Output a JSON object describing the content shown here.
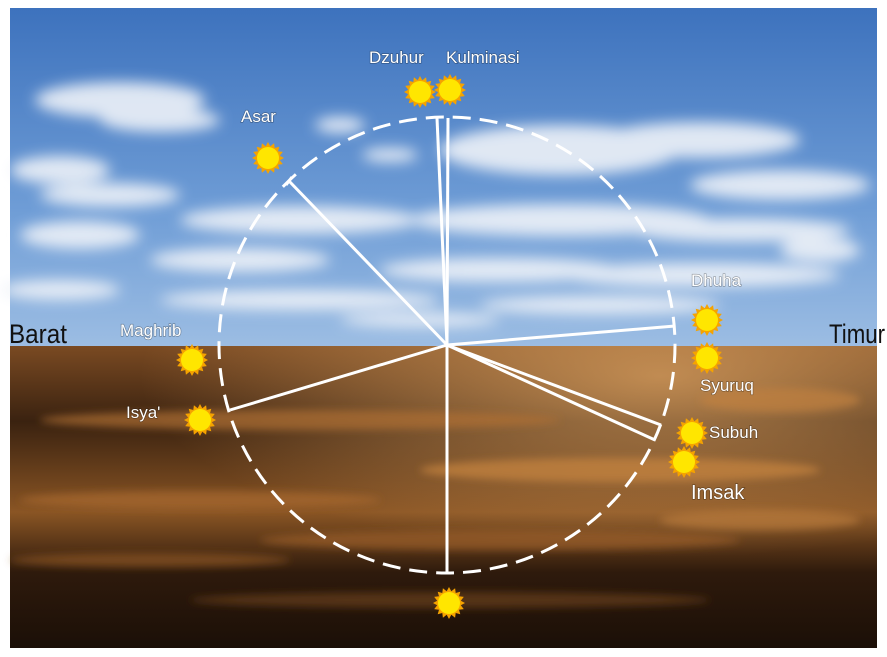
{
  "directions": {
    "west": "Barat",
    "east": "Timur"
  },
  "positions": [
    {
      "label": "Dzuhur"
    },
    {
      "label": "Kulminasi"
    },
    {
      "label": "Asar"
    },
    {
      "label": "Dhuha"
    },
    {
      "label": "Maghrib"
    },
    {
      "label": "Syuruq"
    },
    {
      "label": "Isya'"
    },
    {
      "label": "Subuh"
    },
    {
      "label": "Imsak"
    }
  ]
}
